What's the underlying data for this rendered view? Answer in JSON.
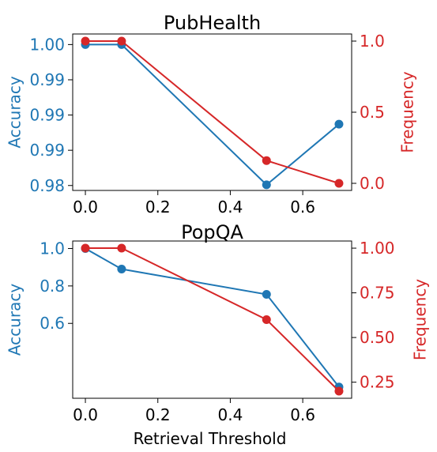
{
  "colors": {
    "accuracy": "#1f77b4",
    "frequency": "#d62728",
    "axis": "#000000",
    "background": "#ffffff"
  },
  "chart_data": [
    {
      "type": "line",
      "title": "PubHealth",
      "xlabel": "",
      "ylabel_left": "Accuracy",
      "ylabel_right": "Frequency",
      "xlim": [
        -0.035,
        0.735
      ],
      "ylim_left": [
        0.9793,
        1.0015
      ],
      "ylim_right": [
        -0.05,
        1.05
      ],
      "x_ticks": [
        0.0,
        0.2,
        0.4,
        0.6
      ],
      "x_tick_labels": [
        "0.0",
        "0.2",
        "0.4",
        "0.6"
      ],
      "y_left_ticks": [
        0.98,
        0.985,
        0.99,
        0.995,
        1.0
      ],
      "y_left_tick_labels": [
        "0.98",
        "0.99",
        "0.99",
        "0.99",
        "1.00"
      ],
      "y_right_ticks": [
        0.0,
        0.5,
        1.0
      ],
      "y_right_tick_labels": [
        "0.0",
        "0.5",
        "1.0"
      ],
      "grid": false,
      "series": [
        {
          "axis": "left",
          "x": [
            0.0,
            0.1,
            0.5,
            0.7
          ],
          "values": [
            1.0,
            1.0,
            0.9801,
            0.9887
          ]
        },
        {
          "axis": "right",
          "x": [
            0.0,
            0.1,
            0.5,
            0.7
          ],
          "values": [
            1.0,
            1.0,
            0.16,
            0.0
          ]
        }
      ]
    },
    {
      "type": "line",
      "title": "PopQA",
      "xlabel": "Retrieval Threshold",
      "ylabel_left": "Accuracy",
      "ylabel_right": "Frequency",
      "xlim": [
        -0.035,
        0.735
      ],
      "ylim_left": [
        0.2,
        1.04
      ],
      "ylim_right": [
        0.16,
        1.04
      ],
      "x_ticks": [
        0.0,
        0.2,
        0.4,
        0.6
      ],
      "x_tick_labels": [
        "0.0",
        "0.2",
        "0.4",
        "0.6"
      ],
      "y_left_ticks": [
        0.6,
        0.8,
        1.0
      ],
      "y_left_tick_labels": [
        "0.6",
        "0.8",
        "1.0"
      ],
      "y_right_ticks": [
        0.25,
        0.5,
        0.75,
        1.0
      ],
      "y_right_tick_labels": [
        "0.25",
        "0.50",
        "0.75",
        "1.00"
      ],
      "grid": false,
      "series": [
        {
          "axis": "left",
          "x": [
            0.0,
            0.1,
            0.5,
            0.7
          ],
          "values": [
            1.0,
            0.89,
            0.755,
            0.26
          ]
        },
        {
          "axis": "right",
          "x": [
            0.0,
            0.1,
            0.5,
            0.7
          ],
          "values": [
            1.0,
            1.0,
            0.6,
            0.2
          ]
        }
      ]
    }
  ]
}
